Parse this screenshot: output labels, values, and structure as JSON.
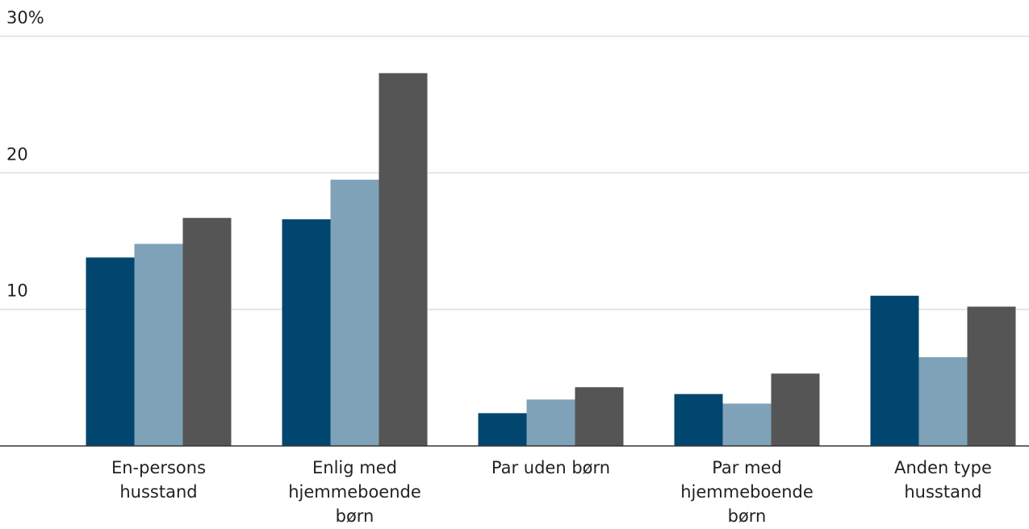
{
  "chart_data": {
    "type": "bar",
    "categories": [
      "En-persons husstand",
      "Enlig med hjemmeboende børn",
      "Par uden børn",
      "Par med hjemmeboende børn",
      "Anden type husstand"
    ],
    "series": [
      {
        "color": "#00466e",
        "values": [
          13.8,
          16.6,
          2.4,
          3.8,
          11.0
        ]
      },
      {
        "color": "#7fa2b8",
        "values": [
          14.8,
          19.5,
          3.4,
          3.1,
          6.5
        ]
      },
      {
        "color": "#555555",
        "values": [
          16.7,
          27.3,
          4.3,
          5.3,
          10.2
        ]
      }
    ],
    "ylim": [
      0,
      30
    ],
    "yticks": [
      10,
      20,
      {
        "value": 30,
        "label": "30%"
      }
    ],
    "grid": true
  }
}
